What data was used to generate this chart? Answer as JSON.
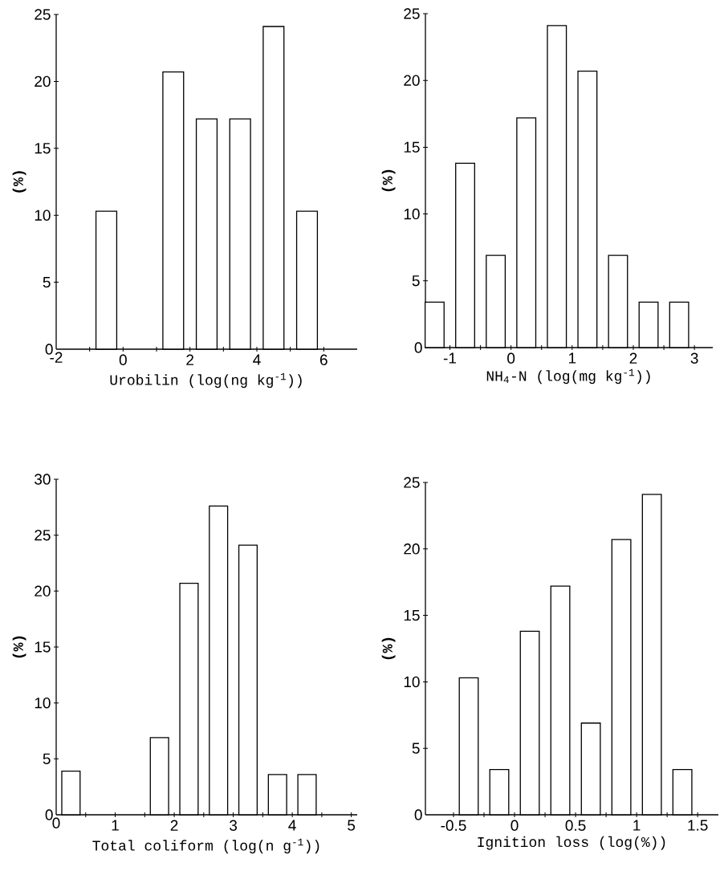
{
  "chart_data": [
    {
      "type": "bar",
      "xlabel": "Urobilin (log(ng kg$^{-1}$))",
      "ylabel": "(%)",
      "color": "#000000",
      "x": [
        -0.5,
        1.5,
        2.5,
        3.5,
        4.5,
        5.5
      ],
      "values": [
        10.3,
        20.7,
        17.2,
        17.2,
        24.1,
        10.3
      ],
      "xlim": [
        -2,
        7
      ],
      "xticks": [
        -2,
        {
          "value": -1,
          "label": null
        },
        0,
        {
          "value": 1,
          "label": null
        },
        2,
        {
          "value": 3,
          "label": null
        },
        4,
        {
          "value": 5,
          "label": null
        },
        6
      ],
      "ylim": [
        0,
        25
      ],
      "yticks": [
        0,
        5,
        10,
        15,
        20,
        25
      ]
    },
    {
      "type": "bar",
      "xlabel": "NH$_{4}$-N (log(mg kg$^{-1}$))",
      "ylabel": "(%)",
      "color": "#000000",
      "x": [
        -1.25,
        -0.75,
        -0.25,
        0.25,
        0.75,
        1.25,
        1.75,
        2.25,
        2.75
      ],
      "values": [
        3.4,
        13.8,
        6.9,
        17.2,
        24.1,
        20.7,
        6.9,
        3.4,
        3.4
      ],
      "xlim": [
        -1.4,
        3.3
      ],
      "xticks": [
        -1,
        {
          "value": -0.5,
          "label": null
        },
        0,
        {
          "value": 0.5,
          "label": null
        },
        1,
        {
          "value": 1.5,
          "label": null
        },
        2,
        {
          "value": 2.5,
          "label": null
        },
        3
      ],
      "ylim": [
        0,
        25
      ],
      "yticks": [
        0,
        5,
        10,
        15,
        20,
        25
      ]
    },
    {
      "type": "bar",
      "xlabel": "Total coliform (log(n g$^{-1}$))",
      "ylabel": "(%)",
      "color": "#000000",
      "x": [
        0.25,
        1.75,
        2.25,
        2.75,
        3.25,
        3.75,
        4.25
      ],
      "values": [
        3.9,
        6.9,
        20.7,
        27.6,
        24.1,
        3.6,
        3.6
      ],
      "xlim": [
        0,
        5.1
      ],
      "xticks": [
        0,
        {
          "value": 0.5,
          "label": null
        },
        1,
        {
          "value": 1.5,
          "label": null
        },
        2,
        {
          "value": 2.5,
          "label": null
        },
        3,
        {
          "value": 3.5,
          "label": null
        },
        4,
        {
          "value": 4.5,
          "label": null
        },
        5
      ],
      "ylim": [
        0,
        30
      ],
      "yticks": [
        0,
        5,
        10,
        15,
        20,
        25,
        30
      ]
    },
    {
      "type": "bar",
      "xlabel": "Ignition loss (log(%))",
      "ylabel": "(%)",
      "color": "#000000",
      "x": [
        -0.375,
        -0.125,
        0.125,
        0.375,
        0.625,
        0.875,
        1.125,
        1.375
      ],
      "values": [
        10.3,
        3.4,
        13.8,
        17.2,
        6.9,
        20.7,
        24.1,
        3.4
      ],
      "xlim": [
        -0.73,
        1.67
      ],
      "xticks": [
        -0.5,
        {
          "value": -0.25,
          "label": null
        },
        0,
        {
          "value": 0.25,
          "label": null
        },
        0.5,
        {
          "value": 0.75,
          "label": null
        },
        1,
        {
          "value": 1.25,
          "label": null
        },
        1.5
      ],
      "ylim": [
        0,
        25
      ],
      "yticks": [
        0,
        5,
        10,
        15,
        20,
        25
      ]
    }
  ]
}
